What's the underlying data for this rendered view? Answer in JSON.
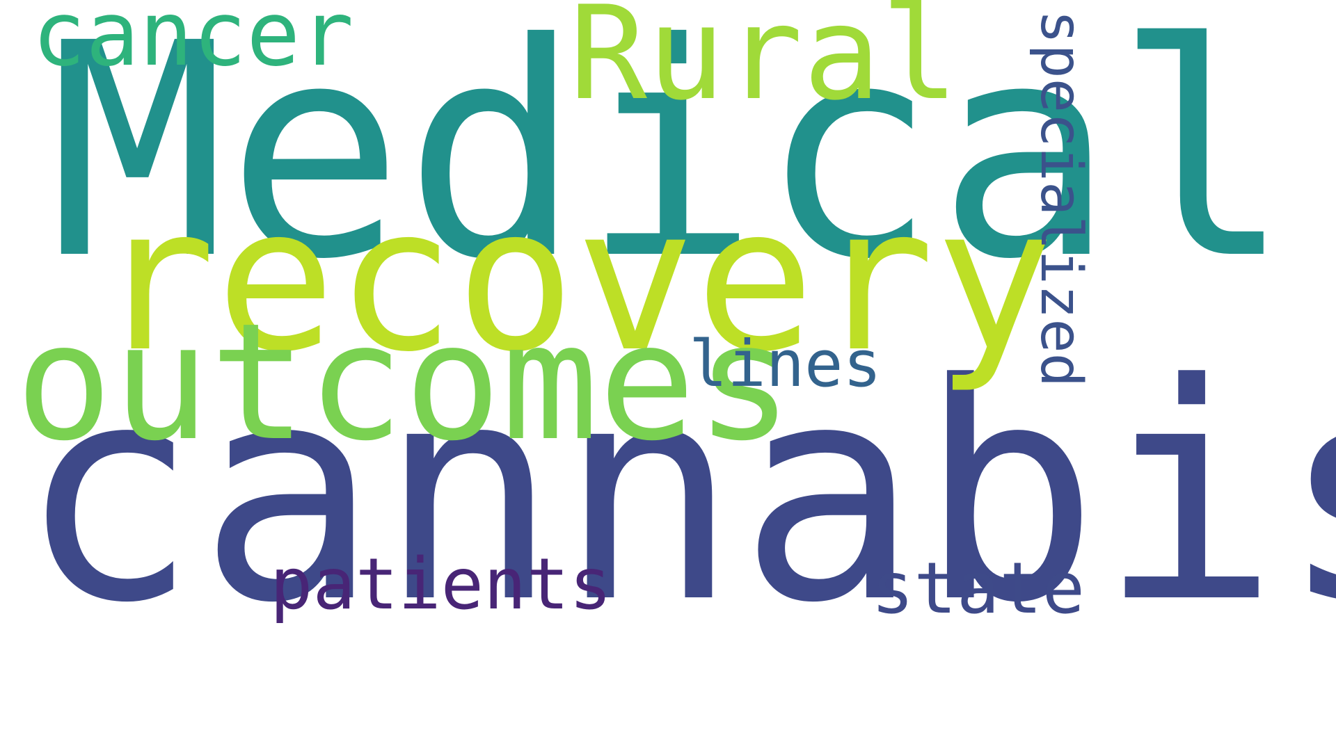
{
  "word_cloud": {
    "words": [
      {
        "text": "Medical",
        "color": "#21918c"
      },
      {
        "text": "cannabis",
        "color": "#3e4989"
      },
      {
        "text": "recovery",
        "color": "#bddf26"
      },
      {
        "text": "outcomes",
        "color": "#7ad151"
      },
      {
        "text": "cancer",
        "color": "#2eb37c"
      },
      {
        "text": "Rural",
        "color": "#a0da39"
      },
      {
        "text": "specialized",
        "color": "#3b528b"
      },
      {
        "text": "lines",
        "color": "#33638d"
      },
      {
        "text": "patients",
        "color": "#482576"
      },
      {
        "text": "state",
        "color": "#3e4a89"
      }
    ]
  }
}
